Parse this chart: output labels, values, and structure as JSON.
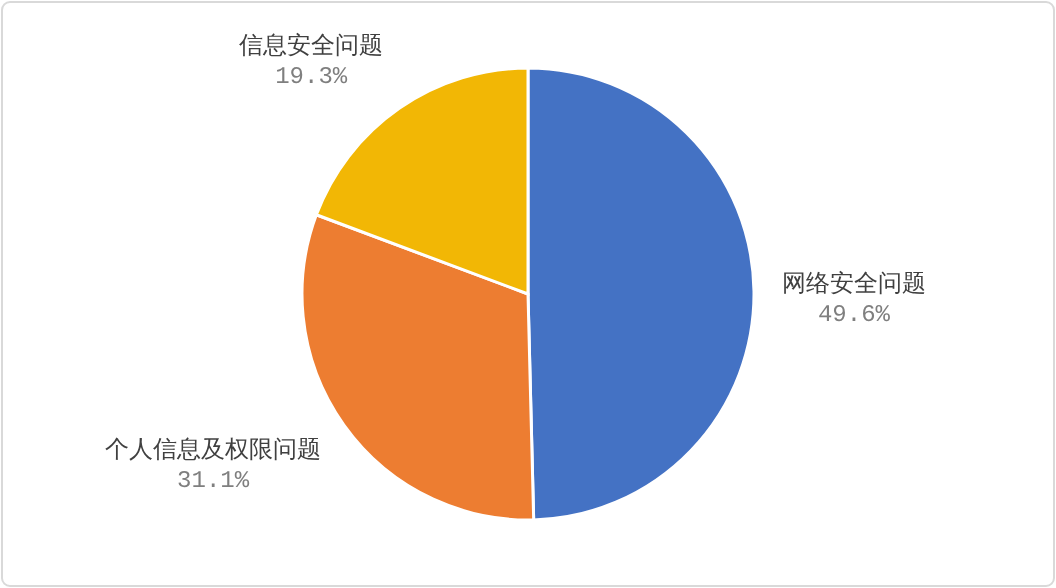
{
  "chart_data": {
    "type": "pie",
    "categories": [
      "网络安全问题",
      "个人信息及权限问题",
      "信息安全问题"
    ],
    "values": [
      49.6,
      31.1,
      19.3
    ],
    "value_labels": [
      "49.6%",
      "31.1%",
      "19.3%"
    ],
    "colors": [
      "#4472c4",
      "#ed7d31",
      "#f2b705"
    ]
  }
}
